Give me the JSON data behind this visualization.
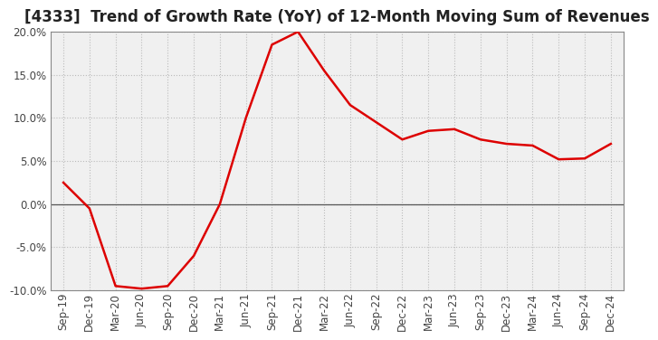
{
  "title": "[4333]  Trend of Growth Rate (YoY) of 12-Month Moving Sum of Revenues",
  "x_labels": [
    "Sep-19",
    "Dec-19",
    "Mar-20",
    "Jun-20",
    "Sep-20",
    "Dec-20",
    "Mar-21",
    "Jun-21",
    "Sep-21",
    "Dec-21",
    "Mar-22",
    "Jun-22",
    "Sep-22",
    "Dec-22",
    "Mar-23",
    "Jun-23",
    "Sep-23",
    "Dec-23",
    "Mar-24",
    "Jun-24",
    "Sep-24",
    "Dec-24"
  ],
  "y_values": [
    2.5,
    -0.5,
    -9.5,
    -9.8,
    -9.5,
    -6.0,
    0.0,
    10.0,
    18.5,
    20.0,
    15.5,
    11.5,
    9.5,
    7.5,
    8.5,
    8.7,
    7.5,
    7.0,
    6.8,
    5.2,
    5.3,
    7.0
  ],
  "line_color": "#dd0000",
  "line_width": 1.8,
  "ylim": [
    -10.0,
    20.0
  ],
  "yticks": [
    -10.0,
    -5.0,
    0.0,
    5.0,
    10.0,
    15.0,
    20.0
  ],
  "background_color": "#ffffff",
  "plot_bg_color": "#f0f0f0",
  "grid_color": "#bbbbbb",
  "title_fontsize": 12,
  "tick_fontsize": 8.5,
  "zero_line_color": "#555555",
  "spine_color": "#888888"
}
